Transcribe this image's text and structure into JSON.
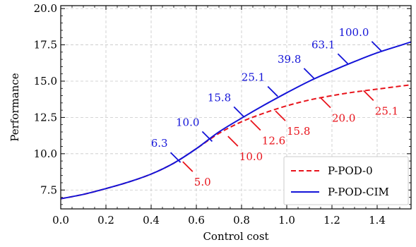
{
  "chart_data": {
    "type": "line",
    "xlabel": "Control cost",
    "ylabel": "Performance",
    "xlim": [
      0.0,
      1.55
    ],
    "ylim": [
      6.2,
      20.2
    ],
    "xticks": [
      0.0,
      0.2,
      0.4,
      0.6,
      0.8,
      1.0,
      1.2,
      1.4
    ],
    "xtick_labels": [
      "0.0",
      "0.2",
      "0.4",
      "0.6",
      "0.8",
      "1.0",
      "1.2",
      "1.4"
    ],
    "yticks": [
      7.5,
      10.0,
      12.5,
      15.0,
      17.5,
      20.0
    ],
    "ytick_labels": [
      "7.5",
      "10.0",
      "12.5",
      "15.0",
      "17.5",
      "20.0"
    ],
    "grid": true,
    "legend_position": "bottom-right",
    "series": [
      {
        "name": "P-POD-0",
        "color": "#e8141c",
        "style": "dashed",
        "x": [
          0.0,
          0.1,
          0.2,
          0.3,
          0.4,
          0.5,
          0.6,
          0.7,
          0.8,
          0.9,
          1.0,
          1.1,
          1.2,
          1.3,
          1.4,
          1.5,
          1.55
        ],
        "y": [
          6.9,
          7.2,
          7.6,
          8.05,
          8.6,
          9.35,
          10.35,
          11.4,
          12.2,
          12.8,
          13.3,
          13.7,
          14.0,
          14.25,
          14.45,
          14.65,
          14.75
        ]
      },
      {
        "name": "P-POD-CIM",
        "color": "#1414d8",
        "style": "solid",
        "x": [
          0.0,
          0.1,
          0.2,
          0.3,
          0.4,
          0.5,
          0.6,
          0.7,
          0.8,
          0.9,
          1.0,
          1.1,
          1.2,
          1.3,
          1.4,
          1.5,
          1.55
        ],
        "y": [
          6.9,
          7.2,
          7.6,
          8.05,
          8.6,
          9.35,
          10.35,
          11.5,
          12.45,
          13.35,
          14.2,
          15.0,
          15.7,
          16.35,
          16.95,
          17.45,
          17.7
        ]
      }
    ],
    "annotations": [
      {
        "series": "P-POD-CIM",
        "text": "6.3",
        "x": 0.53,
        "y": 9.4,
        "dir": "upper-left"
      },
      {
        "series": "P-POD-CIM",
        "text": "10.0",
        "x": 0.67,
        "y": 10.85,
        "dir": "upper-left"
      },
      {
        "series": "P-POD-CIM",
        "text": "15.8",
        "x": 0.81,
        "y": 12.55,
        "dir": "upper-left"
      },
      {
        "series": "P-POD-CIM",
        "text": "25.1",
        "x": 0.96,
        "y": 13.95,
        "dir": "upper-left"
      },
      {
        "series": "P-POD-CIM",
        "text": "39.8",
        "x": 1.12,
        "y": 15.2,
        "dir": "upper-left"
      },
      {
        "series": "P-POD-CIM",
        "text": "63.1",
        "x": 1.27,
        "y": 16.2,
        "dir": "upper-left"
      },
      {
        "series": "P-POD-CIM",
        "text": "100.0",
        "x": 1.42,
        "y": 17.05,
        "dir": "upper-left"
      },
      {
        "series": "P-POD-0",
        "text": "5.0",
        "x": 0.54,
        "y": 9.45,
        "dir": "lower-right"
      },
      {
        "series": "P-POD-0",
        "text": "10.0",
        "x": 0.74,
        "y": 11.2,
        "dir": "lower-right"
      },
      {
        "series": "P-POD-0",
        "text": "12.6",
        "x": 0.84,
        "y": 12.3,
        "dir": "lower-right"
      },
      {
        "series": "P-POD-0",
        "text": "15.8",
        "x": 0.95,
        "y": 12.95,
        "dir": "lower-right"
      },
      {
        "series": "P-POD-0",
        "text": "20.0",
        "x": 1.15,
        "y": 13.85,
        "dir": "lower-right"
      },
      {
        "series": "P-POD-0",
        "text": "25.1",
        "x": 1.34,
        "y": 14.35,
        "dir": "lower-right"
      }
    ]
  }
}
